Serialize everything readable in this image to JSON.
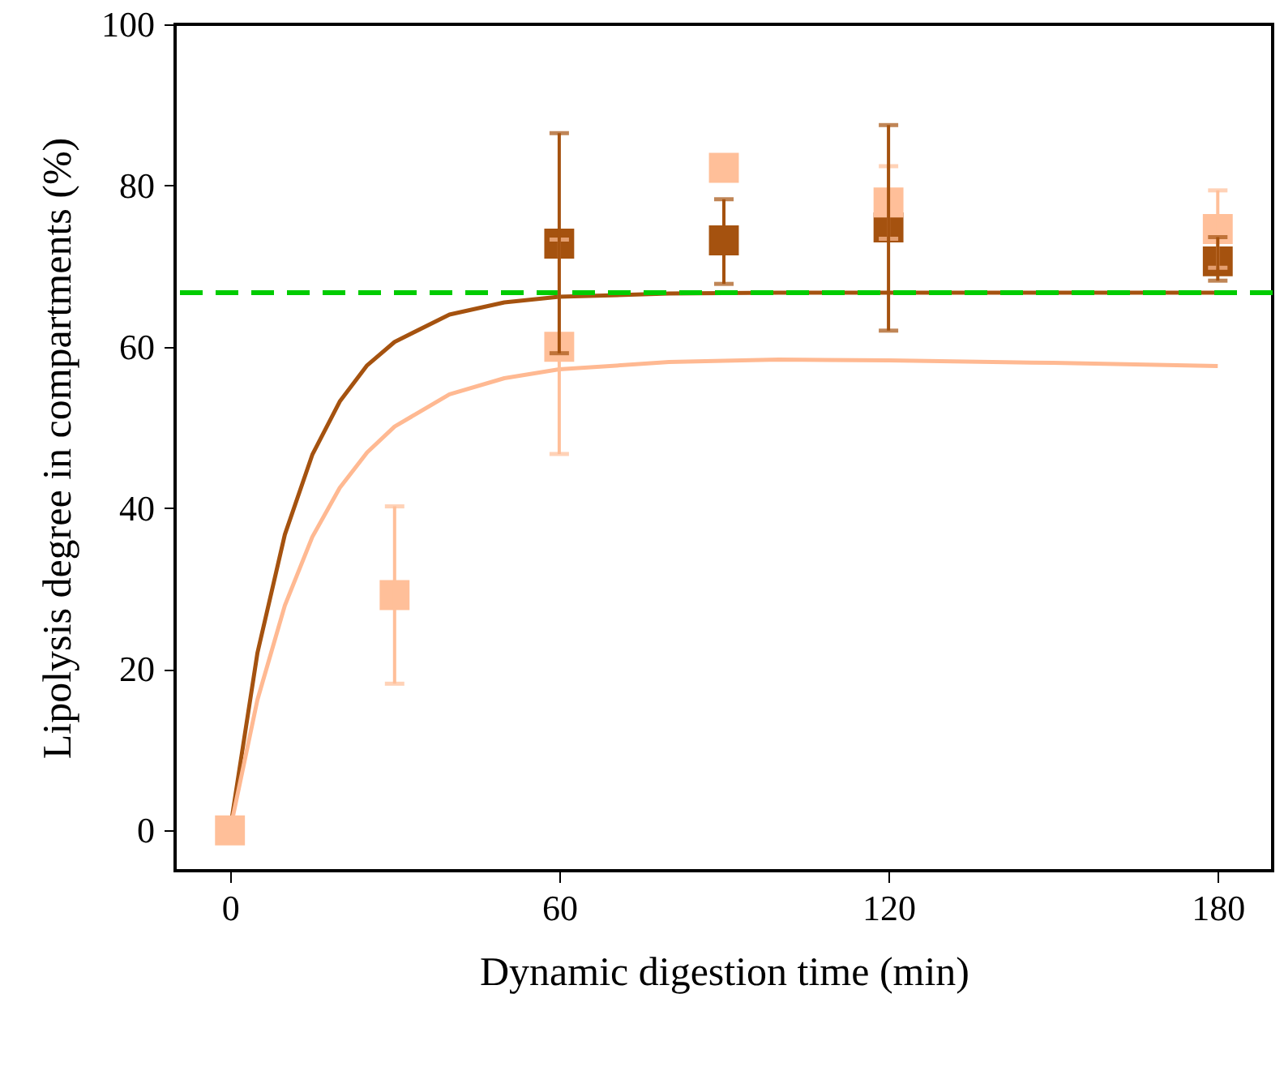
{
  "chart_data": {
    "type": "line",
    "xlabel": "Dynamic digestion time (min)",
    "ylabel": "Lipolysis degree in compartments (%)",
    "xlim": [
      -10,
      190
    ],
    "ylim": [
      -5,
      100
    ],
    "xticks": [
      0,
      60,
      120,
      180
    ],
    "yticks": [
      0,
      20,
      40,
      60,
      80,
      100
    ],
    "grid": false,
    "marker": "square",
    "series": [
      {
        "marker": "none",
        "color": "#a5520f",
        "x": [
          0,
          5,
          10,
          15,
          20,
          25,
          30,
          40,
          50,
          60,
          80,
          100,
          120,
          150,
          180
        ],
        "values": [
          0,
          22,
          36.7,
          46.6,
          53.2,
          57.7,
          60.6,
          64,
          65.5,
          66.2,
          66.6,
          66.7,
          66.7,
          66.7,
          66.7
        ]
      },
      {
        "marker": "none",
        "color": "#ffb992",
        "x": [
          0,
          5,
          10,
          15,
          20,
          25,
          30,
          40,
          50,
          60,
          80,
          100,
          120,
          150,
          180
        ],
        "values": [
          0,
          16.2,
          27.9,
          36.4,
          42.5,
          46.9,
          50.1,
          54.1,
          56.1,
          57.2,
          58.1,
          58.4,
          58.3,
          58,
          57.6
        ]
      },
      {
        "type": "scatter",
        "color": "#ffbf99",
        "x": [
          0,
          30,
          60,
          90,
          120,
          180
        ],
        "values": [
          0,
          29.2,
          60,
          82.2,
          77.9,
          74.6
        ],
        "errors": [
          null,
          11,
          13.3,
          null,
          4.5,
          4.8
        ]
      },
      {
        "type": "scatter",
        "color": "#a5520f",
        "x": [
          60,
          90,
          120,
          180
        ],
        "values": [
          72.8,
          73.2,
          74.8,
          70.6
        ],
        "errors": [
          [
            59.2,
            86.5
          ],
          [
            67.8,
            78.3
          ],
          [
            62,
            87.5
          ],
          [
            68.2,
            73.6
          ]
        ]
      }
    ],
    "ref_lines": [
      {
        "axis": "y",
        "value": 66.7,
        "color": "#00cc00",
        "line_style": "dashed"
      }
    ]
  }
}
